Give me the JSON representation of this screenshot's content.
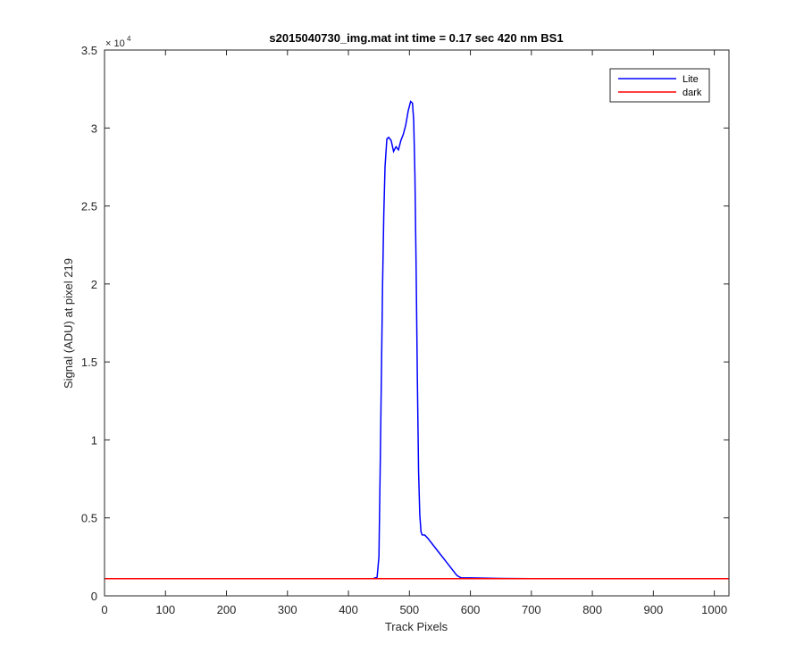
{
  "chart_data": {
    "type": "line",
    "title": "s2015040730_img.mat int time = 0.17 sec  420 nm BS1",
    "xlabel": "Track Pixels",
    "ylabel": "Signal (ADU) at pixel 219",
    "xlim": [
      0,
      1024
    ],
    "ylim": [
      0,
      35000
    ],
    "xticks": [
      0,
      100,
      200,
      300,
      400,
      500,
      600,
      700,
      800,
      900,
      1000
    ],
    "yticks": [
      0,
      5000,
      10000,
      15000,
      20000,
      25000,
      30000,
      35000
    ],
    "ytick_labels": [
      "0",
      "0.5",
      "1",
      "1.5",
      "2",
      "2.5",
      "3",
      "3.5"
    ],
    "y_exponent_base": "× 10",
    "y_exponent_power": "4",
    "grid": false,
    "legend_position": "top-right",
    "series": [
      {
        "name": "Lite",
        "color": "#0000ff",
        "x": [
          0,
          380,
          440,
          447,
          450,
          452,
          454,
          456,
          458,
          460,
          463,
          466,
          470,
          474,
          478,
          482,
          486,
          490,
          494,
          498,
          502,
          505,
          507,
          509,
          511,
          513,
          515,
          517,
          519,
          521,
          525,
          530,
          540,
          550,
          560,
          570,
          578,
          585,
          592,
          600,
          650,
          700,
          800,
          900,
          1024
        ],
        "y": [
          1100,
          1100,
          1100,
          1200,
          2500,
          8000,
          14000,
          20000,
          24500,
          27500,
          29300,
          29400,
          29200,
          28500,
          28800,
          28600,
          29200,
          29600,
          30200,
          31100,
          31700,
          31600,
          30500,
          27000,
          21000,
          14000,
          8000,
          5200,
          4100,
          3900,
          3900,
          3700,
          3200,
          2700,
          2200,
          1700,
          1300,
          1150,
          1150,
          1150,
          1120,
          1100,
          1100,
          1100,
          1100
        ]
      },
      {
        "name": "dark",
        "color": "#ff0000",
        "x": [
          0,
          1024
        ],
        "y": [
          1100,
          1100
        ]
      }
    ]
  }
}
